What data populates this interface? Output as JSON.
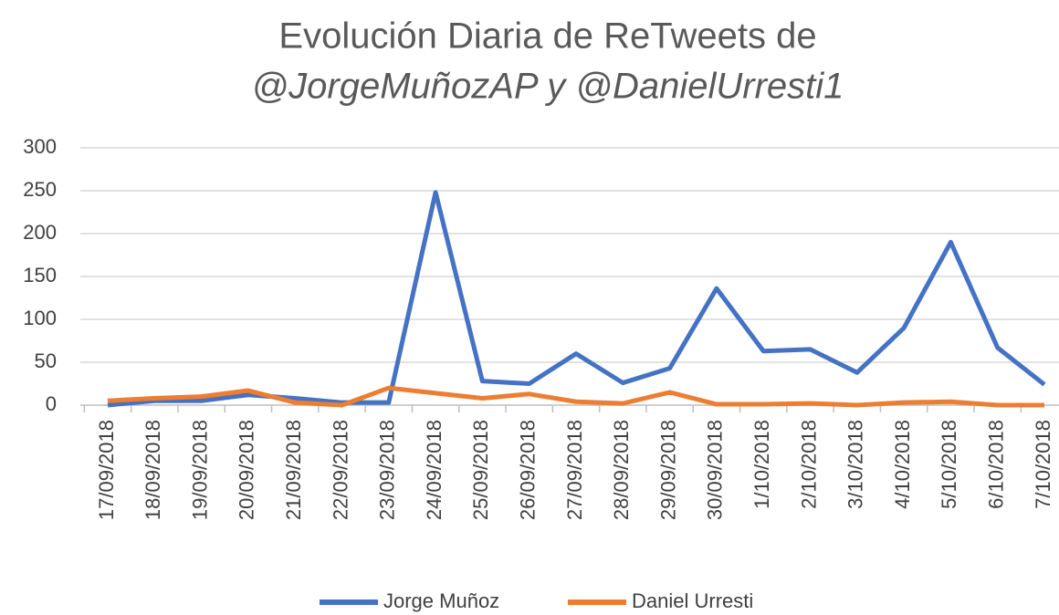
{
  "chart_data": {
    "type": "line",
    "title": [
      "Evolución Diaria de ReTweets de",
      "@JorgeMuñozAP  y @DanielUrresti1"
    ],
    "categories": [
      "17/09/2018",
      "18/09/2018",
      "19/09/2018",
      "20/09/2018",
      "21/09/2018",
      "22/09/2018",
      "23/09/2018",
      "24/09/2018",
      "25/09/2018",
      "26/09/2018",
      "27/09/2018",
      "28/09/2018",
      "29/09/2018",
      "30/09/2018",
      "1/10/2018",
      "2/10/2018",
      "3/10/2018",
      "4/10/2018",
      "5/10/2018",
      "6/10/2018",
      "7/10/2018"
    ],
    "series": [
      {
        "name": "Jorge Muñoz",
        "color": "#4472c4",
        "values": [
          0,
          5,
          5,
          12,
          8,
          3,
          3,
          248,
          28,
          25,
          60,
          26,
          43,
          136,
          63,
          65,
          38,
          90,
          190,
          67,
          24
        ]
      },
      {
        "name": "Daniel Urresti",
        "color": "#ed7d31",
        "values": [
          5,
          8,
          10,
          17,
          3,
          0,
          20,
          14,
          8,
          13,
          4,
          2,
          15,
          1,
          1,
          2,
          0,
          3,
          4,
          0,
          0
        ]
      }
    ],
    "ylim": [
      0,
      300
    ],
    "yticks": [
      0,
      50,
      100,
      150,
      200,
      250,
      300
    ],
    "grid": true,
    "legend": "bottom"
  }
}
